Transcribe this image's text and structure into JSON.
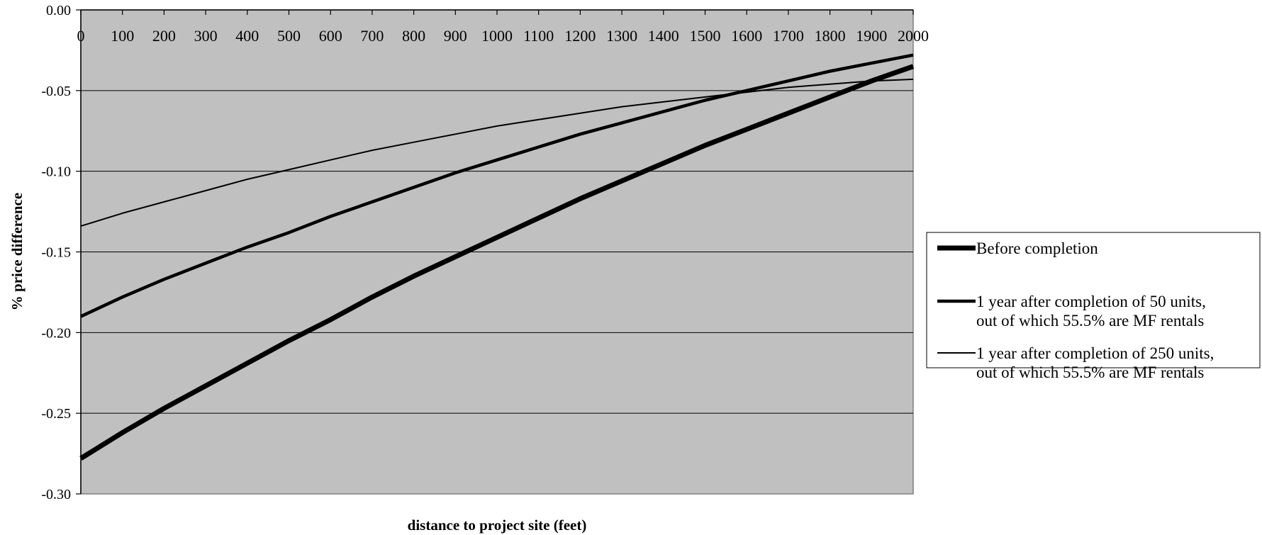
{
  "chart_data": {
    "type": "line",
    "xlabel": "distance to project site (feet)",
    "ylabel": "% price difference",
    "xlim": [
      0,
      2000
    ],
    "ylim": [
      -0.3,
      0.0
    ],
    "x_ticks": [
      "0",
      "100",
      "200",
      "300",
      "400",
      "500",
      "600",
      "700",
      "800",
      "900",
      "1000",
      "1100",
      "1200",
      "1300",
      "1400",
      "1500",
      "1600",
      "1700",
      "1800",
      "1900",
      "2000"
    ],
    "y_ticks": [
      "0.00",
      "-0.05",
      "-0.10",
      "-0.15",
      "-0.20",
      "-0.25",
      "-0.30"
    ],
    "grid": "horizontal",
    "plot_background": "#c0c0c0",
    "legend_position": "right",
    "x": [
      0,
      100,
      200,
      300,
      400,
      500,
      600,
      700,
      800,
      900,
      1000,
      1100,
      1200,
      1300,
      1400,
      1500,
      1600,
      1700,
      1800,
      1900,
      2000
    ],
    "series": [
      {
        "name": "Before completion",
        "legend_lines": [
          "Before completion"
        ],
        "line_style": "thickest",
        "values": [
          -0.278,
          -0.262,
          -0.247,
          -0.233,
          -0.219,
          -0.205,
          -0.192,
          -0.178,
          -0.165,
          -0.153,
          -0.141,
          -0.129,
          -0.117,
          -0.106,
          -0.095,
          -0.084,
          -0.074,
          -0.064,
          -0.054,
          -0.044,
          -0.035
        ]
      },
      {
        "name": "1 year after completion of 50 units, out of which 55.5% are MF rentals",
        "legend_lines": [
          "1 year after completion of 50 units,",
          "out of which 55.5% are MF rentals"
        ],
        "line_style": "thick",
        "values": [
          -0.19,
          -0.178,
          -0.167,
          -0.157,
          -0.147,
          -0.138,
          -0.128,
          -0.119,
          -0.11,
          -0.101,
          -0.093,
          -0.085,
          -0.077,
          -0.07,
          -0.063,
          -0.056,
          -0.05,
          -0.044,
          -0.038,
          -0.033,
          -0.028
        ]
      },
      {
        "name": "1 year after completion of 250 units, out of which 55.5% are MF rentals",
        "legend_lines": [
          "1 year after completion of 250 units,",
          "out of which 55.5% are MF rentals"
        ],
        "line_style": "thin",
        "values": [
          -0.134,
          -0.126,
          -0.119,
          -0.112,
          -0.105,
          -0.099,
          -0.093,
          -0.087,
          -0.082,
          -0.077,
          -0.072,
          -0.068,
          -0.064,
          -0.06,
          -0.057,
          -0.054,
          -0.051,
          -0.048,
          -0.046,
          -0.044,
          -0.043
        ]
      }
    ]
  }
}
